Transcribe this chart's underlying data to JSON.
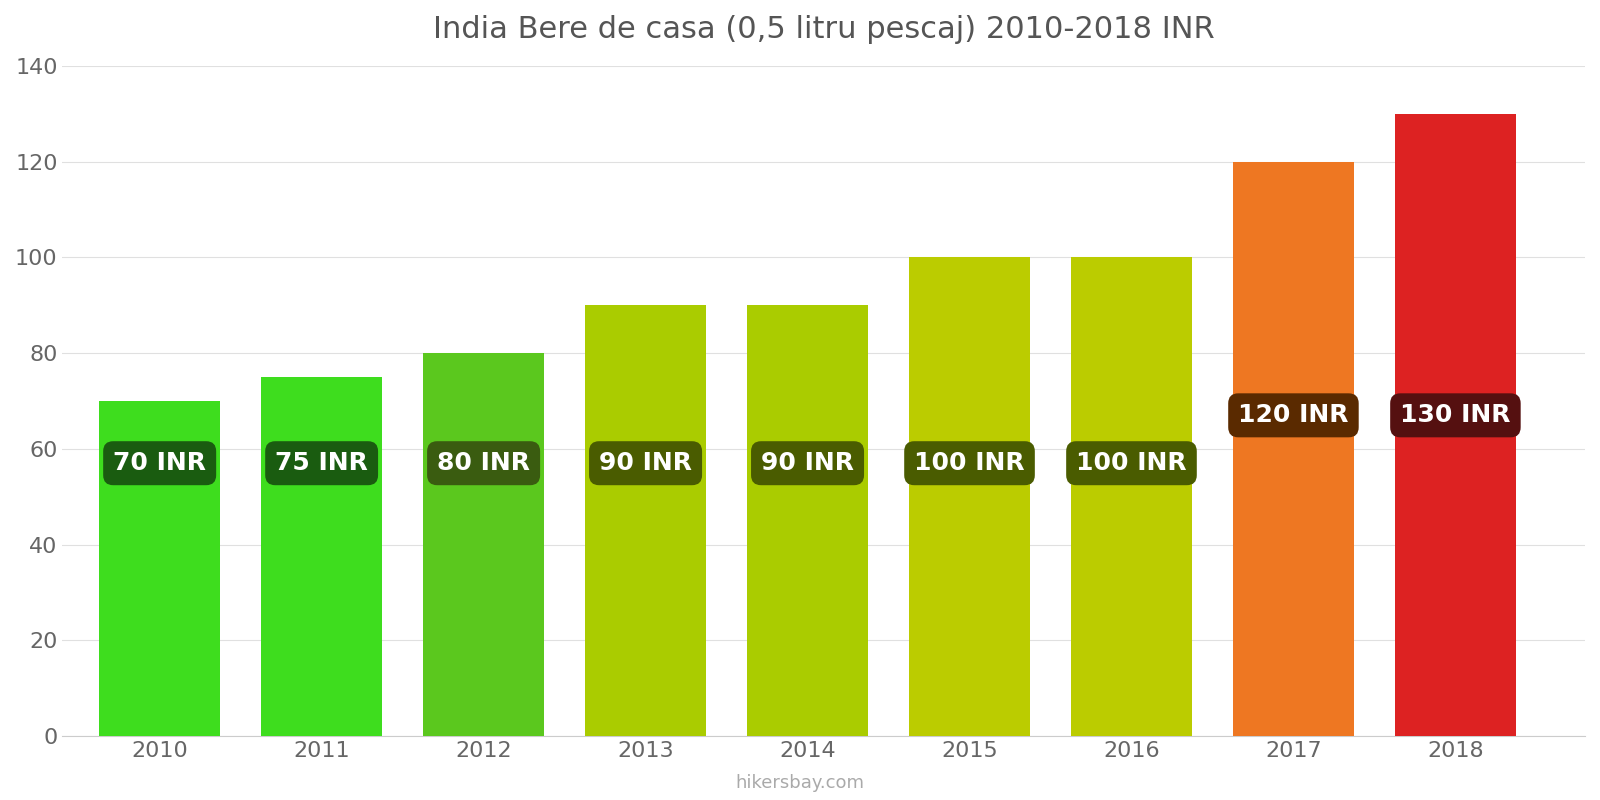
{
  "title": "India Bere de casa (0,5 litru pescaj) 2010-2018 INR",
  "years": [
    2010,
    2011,
    2012,
    2013,
    2014,
    2015,
    2016,
    2017,
    2018
  ],
  "values": [
    70,
    75,
    80,
    90,
    90,
    100,
    100,
    120,
    130
  ],
  "bar_colors": [
    "#3EDD1E",
    "#3EDD1E",
    "#5BC81E",
    "#AACC00",
    "#AACC00",
    "#BBCC00",
    "#BBCC00",
    "#EE7722",
    "#DD2222"
  ],
  "label_bg_colors": [
    "#1A5C10",
    "#1A5C10",
    "#3A5C10",
    "#4A5C00",
    "#4A5C00",
    "#4A5C00",
    "#4A5C00",
    "#5A2A00",
    "#551010"
  ],
  "labels": [
    "70 INR",
    "75 INR",
    "80 INR",
    "90 INR",
    "90 INR",
    "100 INR",
    "100 INR",
    "120 INR",
    "130 INR"
  ],
  "label_y_pos": [
    57,
    57,
    57,
    57,
    57,
    57,
    57,
    67,
    67
  ],
  "ylim": [
    0,
    140
  ],
  "yticks": [
    0,
    20,
    40,
    60,
    80,
    100,
    120,
    140
  ],
  "watermark": "hikersbay.com",
  "background_color": "#ffffff",
  "title_fontsize": 22,
  "tick_fontsize": 16,
  "label_fontsize": 18,
  "bar_width": 0.75
}
